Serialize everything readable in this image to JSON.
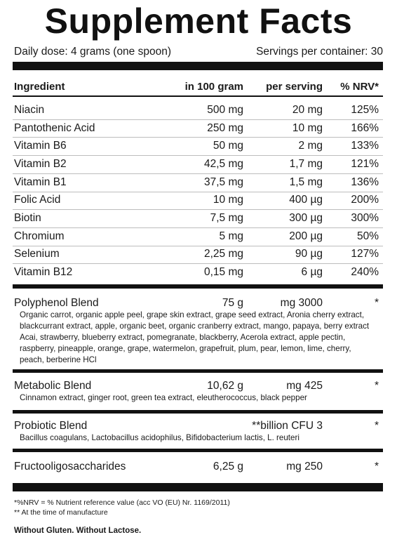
{
  "header": {
    "title": "Supplement Facts",
    "dose": "Daily dose: 4 grams (one spoon)",
    "servings": "Servings per container: 30"
  },
  "table": {
    "columns": [
      "Ingredient",
      "in 100 gram",
      "per serving",
      "% NRV*"
    ],
    "rows": [
      [
        "Niacin",
        "500 mg",
        "20 mg",
        "125%"
      ],
      [
        "Pantothenic Acid",
        "250 mg",
        "10 mg",
        "166%"
      ],
      [
        "Vitamin B6",
        "50 mg",
        "2 mg",
        "133%"
      ],
      [
        "Vitamin B2",
        "42,5 mg",
        "1,7 mg",
        "121%"
      ],
      [
        "Vitamin B1",
        "37,5 mg",
        "1,5 mg",
        "136%"
      ],
      [
        "Folic Acid",
        "10 mg",
        "400 µg",
        "200%"
      ],
      [
        "Biotin",
        "7,5 mg",
        "300 µg",
        "300%"
      ],
      [
        "Chromium",
        "5 mg",
        "200 µg",
        "50%"
      ],
      [
        "Selenium",
        "2,25 mg",
        "90 µg",
        "127%"
      ],
      [
        "Vitamin B12",
        "0,15 mg",
        "6 µg",
        "240%"
      ]
    ]
  },
  "blends": [
    {
      "name": "Polyphenol Blend",
      "per_100g": "75 g",
      "per_serving": "3000 mg",
      "nrv": "*",
      "description": "Organic carrot, organic apple peel, grape skin extract, grape seed extract, Aronia cherry extract, blackcurrant extract, apple, organic beet, organic cranberry extract, mango, papaya, berry extract Acai, strawberry, blueberry extract, pomegranate, blackberry, Acerola extract, apple pectin, raspberry, pineapple, orange, grape, watermelon, grapefruit, plum, pear, lemon, lime, cherry, peach, berberine HCl"
    },
    {
      "name": "Metabolic Blend",
      "per_100g": "10,62 g",
      "per_serving": "425 mg",
      "nrv": "*",
      "description": "Cinnamon extract, ginger root, green tea extract, eleutherococcus, black pepper"
    },
    {
      "name": "Probiotic Blend",
      "per_serving": "3 billion CFU**",
      "nrv": "*",
      "description": "Bacillus coagulans, Lactobacillus acidophilus, Bifidobacterium lactis, L. reuteri"
    },
    {
      "name": "Fructooligosaccharides",
      "per_100g": "6,25 g",
      "per_serving": "250 mg",
      "nrv": "*"
    }
  ],
  "footnotes": [
    "*%NRV = % Nutrient reference value (acc VO (EU) Nr. 1169/2011)",
    "** At the time of manufacture"
  ],
  "footer": "Without Gluten. Without Lactose."
}
